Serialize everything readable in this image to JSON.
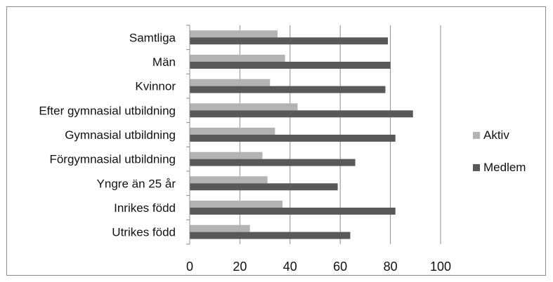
{
  "chart_data": {
    "type": "bar",
    "orientation": "horizontal",
    "categories": [
      "Samtliga",
      "Män",
      "Kvinnor",
      "Efter gymnasial utbildning",
      "Gymnasial utbildning",
      "Förgymnasial utbildning",
      "Yngre än 25 år",
      "Inrikes född",
      "Utrikes född"
    ],
    "series": [
      {
        "name": "Aktiv",
        "color": "#b3b3b3",
        "values": [
          35,
          38,
          32,
          43,
          34,
          29,
          31,
          37,
          24
        ]
      },
      {
        "name": "Medlem",
        "color": "#595959",
        "values": [
          79,
          80,
          78,
          89,
          82,
          66,
          59,
          82,
          64
        ]
      }
    ],
    "xlim": [
      0,
      100
    ],
    "xticks": [
      "0",
      "20",
      "40",
      "60",
      "80",
      "100"
    ],
    "grid": "vertical",
    "legend": "right",
    "title": "",
    "xlabel": "",
    "ylabel": ""
  }
}
